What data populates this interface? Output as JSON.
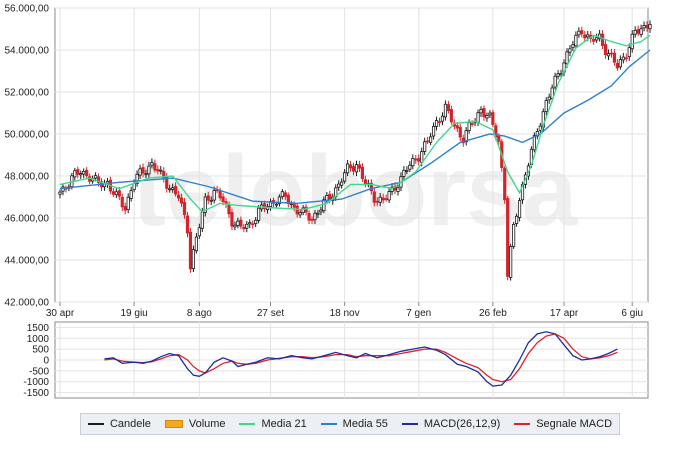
{
  "watermark": "teleborsa",
  "colors": {
    "candle_up": "#1a1a1a",
    "candle_down": "#d4242b",
    "media21": "#3fd98a",
    "media55": "#2f7fd1",
    "macd": "#1f2d9c",
    "signal": "#e0232b",
    "grid": "#e3e3e3",
    "axis": "#888888",
    "volume": "#f5a623"
  },
  "legend": [
    {
      "key": "candele",
      "label": "Candele",
      "color": "#1a1a1a",
      "icon": "line"
    },
    {
      "key": "volume",
      "label": "Volume",
      "color": "#f5a623",
      "icon": "block"
    },
    {
      "key": "media21",
      "label": "Media 21",
      "color": "#3fd98a",
      "icon": "line"
    },
    {
      "key": "media55",
      "label": "Media 55",
      "color": "#2f7fd1",
      "icon": "line"
    },
    {
      "key": "macd",
      "label": "MACD(26,12,9)",
      "color": "#1f2d9c",
      "icon": "line"
    },
    {
      "key": "signal",
      "label": "Segnale MACD",
      "color": "#e0232b",
      "icon": "line"
    }
  ],
  "chart_data": [
    {
      "type": "candlestick",
      "title": "",
      "xlabel": "",
      "ylabel": "",
      "ylim": [
        42000,
        56000
      ],
      "y_ticks": [
        42000,
        44000,
        46000,
        48000,
        50000,
        52000,
        54000,
        56000
      ],
      "y_tick_labels": [
        "42.000,00",
        "44.000,00",
        "46.000,00",
        "48.000,00",
        "50.000,00",
        "52.000,00",
        "54.000,00",
        "56.000,00"
      ],
      "x_tick_labels": [
        "30 apr",
        "19 giu",
        "8 ago",
        "27 set",
        "18 nov",
        "7 gen",
        "26 feb",
        "17 apr",
        "6 giu"
      ],
      "grid": true,
      "close_path": [
        [
          0,
          47200
        ],
        [
          4,
          47900
        ],
        [
          7,
          48200
        ],
        [
          10,
          48000
        ],
        [
          13,
          47600
        ],
        [
          16,
          47700
        ],
        [
          19,
          47000
        ],
        [
          22,
          46500
        ],
        [
          25,
          47800
        ],
        [
          28,
          48200
        ],
        [
          31,
          48600
        ],
        [
          34,
          48000
        ],
        [
          37,
          47500
        ],
        [
          40,
          47000
        ],
        [
          43,
          45500
        ],
        [
          44,
          43800
        ],
        [
          46,
          45000
        ],
        [
          49,
          46800
        ],
        [
          52,
          47300
        ],
        [
          55,
          46800
        ],
        [
          58,
          45900
        ],
        [
          61,
          45500
        ],
        [
          64,
          45700
        ],
        [
          67,
          46300
        ],
        [
          70,
          46600
        ],
        [
          73,
          46900
        ],
        [
          76,
          47000
        ],
        [
          79,
          46500
        ],
        [
          82,
          46200
        ],
        [
          85,
          46000
        ],
        [
          88,
          46500
        ],
        [
          91,
          47000
        ],
        [
          94,
          47600
        ],
        [
          97,
          48300
        ],
        [
          100,
          48600
        ],
        [
          103,
          47600
        ],
        [
          106,
          47000
        ],
        [
          109,
          46800
        ],
        [
          112,
          47300
        ],
        [
          115,
          47900
        ],
        [
          118,
          48500
        ],
        [
          121,
          49000
        ],
        [
          124,
          49600
        ],
        [
          127,
          50600
        ],
        [
          130,
          51200
        ],
        [
          133,
          50400
        ],
        [
          136,
          49800
        ],
        [
          139,
          50500
        ],
        [
          142,
          51200
        ],
        [
          145,
          50700
        ],
        [
          148,
          49700
        ],
        [
          150,
          47000
        ],
        [
          151,
          43300
        ],
        [
          153,
          45500
        ],
        [
          155,
          47000
        ],
        [
          158,
          48600
        ],
        [
          161,
          50200
        ],
        [
          164,
          51500
        ],
        [
          167,
          52500
        ],
        [
          170,
          53500
        ],
        [
          173,
          54300
        ],
        [
          176,
          55000
        ],
        [
          179,
          54400
        ],
        [
          182,
          54600
        ],
        [
          185,
          53800
        ],
        [
          188,
          53200
        ],
        [
          191,
          53900
        ],
        [
          194,
          54800
        ],
        [
          197,
          55100
        ],
        [
          199,
          55400
        ]
      ],
      "series": [
        {
          "name": "Media 21",
          "path": [
            [
              0,
              47600
            ],
            [
              10,
              47900
            ],
            [
              20,
              47400
            ],
            [
              30,
              47900
            ],
            [
              38,
              48000
            ],
            [
              44,
              46900
            ],
            [
              48,
              46300
            ],
            [
              54,
              46700
            ],
            [
              60,
              46600
            ],
            [
              70,
              46500
            ],
            [
              82,
              46400
            ],
            [
              90,
              46700
            ],
            [
              98,
              47600
            ],
            [
              105,
              47600
            ],
            [
              112,
              47400
            ],
            [
              120,
              48200
            ],
            [
              127,
              49600
            ],
            [
              133,
              50500
            ],
            [
              140,
              50600
            ],
            [
              146,
              50200
            ],
            [
              151,
              48200
            ],
            [
              155,
              47200
            ],
            [
              159,
              48500
            ],
            [
              163,
              50400
            ],
            [
              168,
              52400
            ],
            [
              174,
              54100
            ],
            [
              180,
              54700
            ],
            [
              186,
              54400
            ],
            [
              191,
              54200
            ],
            [
              196,
              54400
            ],
            [
              199,
              54700
            ]
          ]
        },
        {
          "name": "Media 55",
          "path": [
            [
              0,
              47400
            ],
            [
              20,
              47700
            ],
            [
              38,
              47900
            ],
            [
              50,
              47500
            ],
            [
              65,
              46800
            ],
            [
              80,
              46700
            ],
            [
              95,
              46900
            ],
            [
              105,
              47400
            ],
            [
              115,
              47700
            ],
            [
              125,
              48600
            ],
            [
              135,
              49600
            ],
            [
              145,
              50000
            ],
            [
              150,
              49900
            ],
            [
              156,
              49600
            ],
            [
              162,
              50000
            ],
            [
              170,
              51000
            ],
            [
              178,
              51600
            ],
            [
              186,
              52300
            ],
            [
              192,
              53200
            ],
            [
              199,
              54000
            ]
          ]
        }
      ]
    },
    {
      "type": "line",
      "title": "",
      "xlabel": "",
      "ylabel": "",
      "ylim": [
        -1750,
        1750
      ],
      "y_ticks": [
        1500,
        1000,
        500,
        0,
        -500,
        -1000,
        -1500
      ],
      "y_tick_labels": [
        "1500",
        "1000",
        "500",
        "0",
        "-500",
        "-1000",
        "-1500"
      ],
      "grid": true,
      "series": [
        {
          "name": "MACD(26,12,9)",
          "path": [
            [
              15,
              50
            ],
            [
              18,
              100
            ],
            [
              21,
              -150
            ],
            [
              25,
              -100
            ],
            [
              28,
              -150
            ],
            [
              31,
              -50
            ],
            [
              34,
              150
            ],
            [
              37,
              300
            ],
            [
              40,
              200
            ],
            [
              43,
              -400
            ],
            [
              45,
              -700
            ],
            [
              47,
              -750
            ],
            [
              49,
              -600
            ],
            [
              52,
              -100
            ],
            [
              55,
              100
            ],
            [
              58,
              -50
            ],
            [
              60,
              -300
            ],
            [
              63,
              -200
            ],
            [
              66,
              -100
            ],
            [
              70,
              100
            ],
            [
              74,
              50
            ],
            [
              78,
              200
            ],
            [
              82,
              100
            ],
            [
              85,
              50
            ],
            [
              89,
              200
            ],
            [
              93,
              350
            ],
            [
              97,
              200
            ],
            [
              100,
              100
            ],
            [
              103,
              300
            ],
            [
              107,
              100
            ],
            [
              111,
              250
            ],
            [
              115,
              400
            ],
            [
              119,
              500
            ],
            [
              123,
              600
            ],
            [
              127,
              450
            ],
            [
              130,
              250
            ],
            [
              134,
              -200
            ],
            [
              137,
              -300
            ],
            [
              141,
              -550
            ],
            [
              144,
              -1000
            ],
            [
              146,
              -1200
            ],
            [
              149,
              -1150
            ],
            [
              152,
              -700
            ],
            [
              155,
              0
            ],
            [
              158,
              800
            ],
            [
              161,
              1200
            ],
            [
              164,
              1300
            ],
            [
              167,
              1200
            ],
            [
              170,
              700
            ],
            [
              173,
              200
            ],
            [
              176,
              0
            ],
            [
              179,
              50
            ],
            [
              182,
              150
            ],
            [
              185,
              300
            ],
            [
              188,
              500
            ]
          ]
        },
        {
          "name": "Segnale MACD",
          "path": [
            [
              15,
              0
            ],
            [
              18,
              50
            ],
            [
              21,
              -50
            ],
            [
              25,
              -100
            ],
            [
              28,
              -120
            ],
            [
              31,
              -80
            ],
            [
              34,
              50
            ],
            [
              37,
              200
            ],
            [
              40,
              250
            ],
            [
              43,
              0
            ],
            [
              45,
              -300
            ],
            [
              47,
              -500
            ],
            [
              49,
              -600
            ],
            [
              52,
              -400
            ],
            [
              55,
              -150
            ],
            [
              58,
              -50
            ],
            [
              60,
              -150
            ],
            [
              63,
              -200
            ],
            [
              66,
              -150
            ],
            [
              70,
              0
            ],
            [
              74,
              80
            ],
            [
              78,
              150
            ],
            [
              82,
              150
            ],
            [
              85,
              100
            ],
            [
              89,
              150
            ],
            [
              93,
              250
            ],
            [
              97,
              250
            ],
            [
              100,
              150
            ],
            [
              103,
              200
            ],
            [
              107,
              200
            ],
            [
              111,
              200
            ],
            [
              115,
              300
            ],
            [
              119,
              400
            ],
            [
              123,
              500
            ],
            [
              127,
              500
            ],
            [
              130,
              350
            ],
            [
              134,
              50
            ],
            [
              137,
              -150
            ],
            [
              141,
              -350
            ],
            [
              144,
              -700
            ],
            [
              146,
              -900
            ],
            [
              149,
              -1000
            ],
            [
              152,
              -900
            ],
            [
              155,
              -400
            ],
            [
              158,
              300
            ],
            [
              161,
              800
            ],
            [
              164,
              1100
            ],
            [
              167,
              1200
            ],
            [
              170,
              1000
            ],
            [
              173,
              500
            ],
            [
              176,
              150
            ],
            [
              179,
              50
            ],
            [
              182,
              100
            ],
            [
              185,
              200
            ],
            [
              188,
              350
            ]
          ]
        }
      ]
    }
  ]
}
